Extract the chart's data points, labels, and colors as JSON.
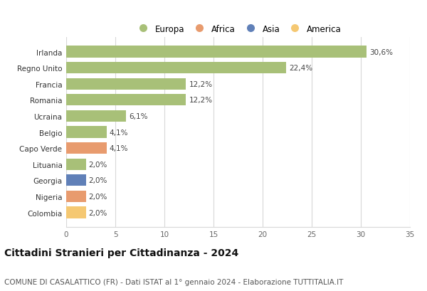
{
  "countries": [
    "Colombia",
    "Nigeria",
    "Georgia",
    "Lituania",
    "Capo Verde",
    "Belgio",
    "Ucraina",
    "Romania",
    "Francia",
    "Regno Unito",
    "Irlanda"
  ],
  "values": [
    2.0,
    2.0,
    2.0,
    2.0,
    4.1,
    4.1,
    6.1,
    12.2,
    12.2,
    22.4,
    30.6
  ],
  "labels": [
    "2,0%",
    "2,0%",
    "2,0%",
    "2,0%",
    "4,1%",
    "4,1%",
    "6,1%",
    "12,2%",
    "12,2%",
    "22,4%",
    "30,6%"
  ],
  "colors": [
    "#f5c872",
    "#e89b6e",
    "#6080b8",
    "#a8c078",
    "#e89b6e",
    "#a8c078",
    "#a8c078",
    "#a8c078",
    "#a8c078",
    "#a8c078",
    "#a8c078"
  ],
  "legend_labels": [
    "Europa",
    "Africa",
    "Asia",
    "America"
  ],
  "legend_colors": [
    "#a8c078",
    "#e89b6e",
    "#6080b8",
    "#f5c872"
  ],
  "title": "Cittadini Stranieri per Cittadinanza - 2024",
  "subtitle": "COMUNE DI CASALATTICO (FR) - Dati ISTAT al 1° gennaio 2024 - Elaborazione TUTTITALIA.IT",
  "xlim": [
    0,
    35
  ],
  "xticks": [
    0,
    5,
    10,
    15,
    20,
    25,
    30,
    35
  ],
  "background_color": "#ffffff",
  "bar_height": 0.72,
  "grid_color": "#d8d8d8",
  "title_fontsize": 10,
  "subtitle_fontsize": 7.5,
  "label_fontsize": 7.5,
  "tick_fontsize": 7.5,
  "legend_fontsize": 8.5
}
